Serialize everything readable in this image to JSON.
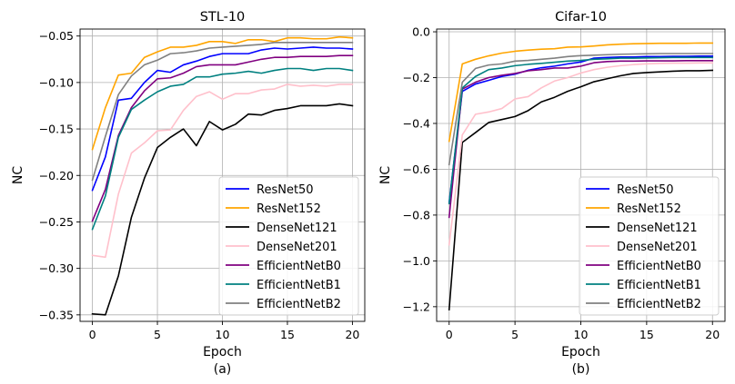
{
  "chart_data": [
    {
      "type": "line",
      "title": "STL-10",
      "xlabel": "Epoch",
      "ylabel": "NC",
      "caption": "(a)",
      "xlim": [
        -0.95,
        20.95
      ],
      "ylim": [
        -0.357,
        -0.0425
      ],
      "xticks": [
        0,
        5,
        10,
        15,
        20
      ],
      "yticks": [
        -0.35,
        -0.3,
        -0.25,
        -0.2,
        -0.15,
        -0.1,
        -0.05
      ],
      "ytick_labels": [
        "−0.35",
        "−0.30",
        "−0.25",
        "−0.20",
        "−0.15",
        "−0.10",
        "−0.05"
      ],
      "grid": true,
      "legend_position": "lower-right",
      "x": [
        0,
        1,
        2,
        3,
        4,
        5,
        6,
        7,
        8,
        9,
        10,
        11,
        12,
        13,
        14,
        15,
        16,
        17,
        18,
        19,
        20
      ],
      "series": [
        {
          "name": "ResNet50",
          "color": "#0000ff",
          "values": [
            -0.216,
            -0.18,
            -0.119,
            -0.117,
            -0.1,
            -0.087,
            -0.089,
            -0.081,
            -0.077,
            -0.072,
            -0.069,
            -0.069,
            -0.069,
            -0.065,
            -0.063,
            -0.064,
            -0.063,
            -0.062,
            -0.063,
            -0.063,
            -0.064
          ]
        },
        {
          "name": "ResNet152",
          "color": "#ffa500",
          "values": [
            -0.172,
            -0.127,
            -0.092,
            -0.09,
            -0.073,
            -0.067,
            -0.062,
            -0.062,
            -0.06,
            -0.056,
            -0.056,
            -0.058,
            -0.054,
            -0.054,
            -0.056,
            -0.052,
            -0.052,
            -0.053,
            -0.053,
            -0.051,
            -0.052
          ]
        },
        {
          "name": "DenseNet121",
          "color": "#000000",
          "values": [
            -0.349,
            -0.35,
            -0.308,
            -0.245,
            -0.203,
            -0.17,
            -0.159,
            -0.15,
            -0.168,
            -0.142,
            -0.151,
            -0.145,
            -0.134,
            -0.135,
            -0.13,
            -0.128,
            -0.125,
            -0.125,
            -0.125,
            -0.123,
            -0.125
          ]
        },
        {
          "name": "DenseNet201",
          "color": "#ffc0cb",
          "values": [
            -0.286,
            -0.288,
            -0.22,
            -0.176,
            -0.165,
            -0.152,
            -0.151,
            -0.13,
            -0.115,
            -0.11,
            -0.118,
            -0.112,
            -0.112,
            -0.108,
            -0.107,
            -0.102,
            -0.104,
            -0.103,
            -0.104,
            -0.102,
            -0.102
          ]
        },
        {
          "name": "EfficientNetB0",
          "color": "#800080",
          "values": [
            -0.249,
            -0.215,
            -0.157,
            -0.127,
            -0.109,
            -0.096,
            -0.095,
            -0.09,
            -0.083,
            -0.081,
            -0.081,
            -0.081,
            -0.078,
            -0.075,
            -0.073,
            -0.073,
            -0.072,
            -0.072,
            -0.072,
            -0.071,
            -0.071
          ]
        },
        {
          "name": "EfficientNetB1",
          "color": "#008080",
          "values": [
            -0.258,
            -0.222,
            -0.159,
            -0.129,
            -0.119,
            -0.11,
            -0.104,
            -0.102,
            -0.094,
            -0.094,
            -0.091,
            -0.09,
            -0.088,
            -0.09,
            -0.087,
            -0.085,
            -0.085,
            -0.087,
            -0.085,
            -0.085,
            -0.087
          ]
        },
        {
          "name": "EfficientNetB2",
          "color": "#808080",
          "values": [
            -0.205,
            -0.158,
            -0.113,
            -0.093,
            -0.081,
            -0.076,
            -0.069,
            -0.068,
            -0.066,
            -0.063,
            -0.062,
            -0.061,
            -0.06,
            -0.059,
            -0.057,
            -0.057,
            -0.057,
            -0.057,
            -0.057,
            -0.057,
            -0.057
          ]
        }
      ]
    },
    {
      "type": "line",
      "title": "Cifar-10",
      "xlabel": "Epoch",
      "ylabel": "NC",
      "caption": "(b)",
      "xlim": [
        -0.95,
        20.95
      ],
      "ylim": [
        -1.264,
        0.012
      ],
      "xticks": [
        0,
        5,
        10,
        15,
        20
      ],
      "yticks": [
        -1.2,
        -1.0,
        -0.8,
        -0.6,
        -0.4,
        -0.2,
        0.0
      ],
      "ytick_labels": [
        "−1.2",
        "−1.0",
        "−0.8",
        "−0.6",
        "−0.4",
        "−0.2",
        "0.0"
      ],
      "grid": true,
      "legend_position": "lower-right",
      "x": [
        0,
        1,
        2,
        3,
        4,
        5,
        6,
        7,
        8,
        9,
        10,
        11,
        12,
        13,
        14,
        15,
        16,
        17,
        18,
        19,
        20
      ],
      "series": [
        {
          "name": "ResNet50",
          "color": "#0000ff",
          "values": [
            -0.745,
            -0.26,
            -0.228,
            -0.212,
            -0.195,
            -0.185,
            -0.168,
            -0.157,
            -0.15,
            -0.14,
            -0.132,
            -0.115,
            -0.112,
            -0.11,
            -0.11,
            -0.108,
            -0.108,
            -0.107,
            -0.107,
            -0.106,
            -0.106
          ]
        },
        {
          "name": "ResNet152",
          "color": "#ffa500",
          "values": [
            -0.478,
            -0.14,
            -0.12,
            -0.105,
            -0.093,
            -0.085,
            -0.08,
            -0.076,
            -0.074,
            -0.067,
            -0.066,
            -0.062,
            -0.057,
            -0.054,
            -0.052,
            -0.051,
            -0.05,
            -0.05,
            -0.05,
            -0.049,
            -0.049
          ]
        },
        {
          "name": "DenseNet121",
          "color": "#000000",
          "values": [
            -1.213,
            -0.483,
            -0.44,
            -0.396,
            -0.383,
            -0.37,
            -0.344,
            -0.306,
            -0.286,
            -0.26,
            -0.24,
            -0.218,
            -0.205,
            -0.192,
            -0.182,
            -0.178,
            -0.175,
            -0.172,
            -0.17,
            -0.17,
            -0.168
          ]
        },
        {
          "name": "DenseNet201",
          "color": "#ffc0cb",
          "values": [
            -0.93,
            -0.45,
            -0.36,
            -0.35,
            -0.335,
            -0.293,
            -0.283,
            -0.245,
            -0.215,
            -0.2,
            -0.18,
            -0.165,
            -0.155,
            -0.148,
            -0.143,
            -0.14,
            -0.138,
            -0.137,
            -0.137,
            -0.136,
            -0.136
          ]
        },
        {
          "name": "EfficientNetB0",
          "color": "#800080",
          "values": [
            -0.81,
            -0.25,
            -0.22,
            -0.2,
            -0.19,
            -0.182,
            -0.17,
            -0.165,
            -0.158,
            -0.158,
            -0.15,
            -0.135,
            -0.13,
            -0.128,
            -0.128,
            -0.127,
            -0.127,
            -0.127,
            -0.126,
            -0.126,
            -0.126
          ]
        },
        {
          "name": "EfficientNetB1",
          "color": "#008080",
          "values": [
            -0.75,
            -0.245,
            -0.195,
            -0.165,
            -0.158,
            -0.148,
            -0.142,
            -0.138,
            -0.133,
            -0.128,
            -0.125,
            -0.12,
            -0.118,
            -0.115,
            -0.115,
            -0.114,
            -0.113,
            -0.112,
            -0.112,
            -0.112,
            -0.112
          ]
        },
        {
          "name": "EfficientNetB2",
          "color": "#808080",
          "values": [
            -0.58,
            -0.22,
            -0.16,
            -0.145,
            -0.14,
            -0.128,
            -0.125,
            -0.12,
            -0.115,
            -0.108,
            -0.104,
            -0.102,
            -0.1,
            -0.098,
            -0.097,
            -0.096,
            -0.095,
            -0.095,
            -0.095,
            -0.095,
            -0.095
          ]
        }
      ]
    }
  ]
}
